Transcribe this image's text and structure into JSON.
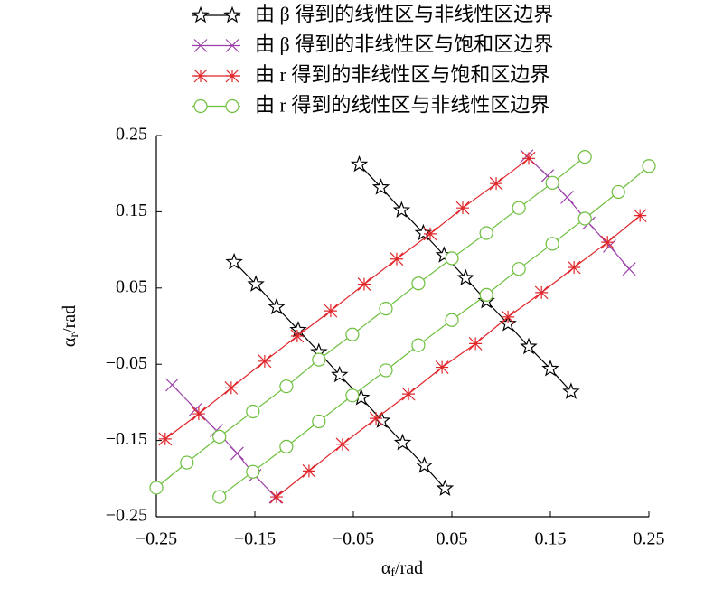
{
  "chart_data": {
    "type": "line",
    "xlabel": {
      "symbol": "α",
      "sub": "f",
      "unit": "/rad"
    },
    "ylabel": {
      "symbol": "α",
      "sub": "r",
      "unit": "/rad"
    },
    "xlim": [
      -0.25,
      0.25
    ],
    "ylim": [
      -0.25,
      0.25
    ],
    "xticks": [
      {
        "value": -0.25,
        "label": "−0.25"
      },
      {
        "value": -0.15,
        "label": "−0.15"
      },
      {
        "value": -0.05,
        "label": "−0.05"
      },
      0.05,
      0.15,
      0.25
    ],
    "yticks": [
      {
        "value": -0.25,
        "label": "−0.25"
      },
      {
        "value": -0.15,
        "label": "−0.15"
      },
      {
        "value": -0.05,
        "label": "−0.05"
      },
      0.05,
      0.15,
      0.25
    ],
    "series": [
      {
        "name": "由 β 得到的线性区与非线性区边界",
        "color": "#000000",
        "marker": "star",
        "x": [
          -0.171,
          -0.149,
          -0.128,
          -0.106,
          -0.085,
          -0.064,
          -0.042,
          -0.021,
          0.0,
          0.022,
          0.043,
          null,
          -0.044,
          -0.022,
          -0.001,
          0.021,
          0.042,
          0.064,
          0.085,
          0.107,
          0.128,
          0.15,
          0.171
        ],
        "values": [
          0.084,
          0.055,
          0.025,
          -0.005,
          -0.034,
          -0.064,
          -0.094,
          -0.124,
          -0.153,
          -0.183,
          -0.213,
          null,
          0.212,
          0.182,
          0.152,
          0.122,
          0.093,
          0.063,
          0.033,
          0.003,
          -0.027,
          -0.056,
          -0.086
        ]
      },
      {
        "name": "由 β 得到的非线性区与饱和区边界",
        "color": "#9b3fa8",
        "marker": "x",
        "x": [
          -0.234,
          -0.21,
          -0.189,
          -0.168,
          -0.15,
          -0.129,
          null,
          0.126,
          0.147,
          0.167,
          0.189,
          0.21,
          0.23
        ],
        "values": [
          -0.077,
          -0.109,
          -0.137,
          -0.167,
          -0.196,
          -0.224,
          null,
          0.223,
          0.197,
          0.169,
          0.135,
          0.105,
          0.075
        ]
      },
      {
        "name": "由 r 得到的非线性区与饱和区边界",
        "color": "#e0262a",
        "marker": "asterisk",
        "x": [
          -0.241,
          -0.207,
          -0.174,
          -0.14,
          -0.107,
          -0.073,
          -0.039,
          -0.006,
          0.028,
          0.061,
          0.095,
          0.128,
          null,
          -0.128,
          -0.095,
          -0.061,
          -0.027,
          0.006,
          0.04,
          0.074,
          0.107,
          0.141,
          0.174,
          0.208,
          0.241
        ],
        "values": [
          -0.148,
          -0.115,
          -0.081,
          -0.046,
          -0.013,
          0.02,
          0.055,
          0.088,
          0.121,
          0.155,
          0.187,
          0.22,
          null,
          -0.224,
          -0.19,
          -0.155,
          -0.121,
          -0.089,
          -0.054,
          -0.023,
          0.012,
          0.044,
          0.077,
          0.11,
          0.145
        ]
      },
      {
        "name": "由 r 得到的线性区与非线性区边界",
        "color": "#6cbf3c",
        "marker": "circle",
        "x": [
          -0.25,
          -0.219,
          -0.186,
          -0.152,
          -0.118,
          -0.085,
          -0.051,
          -0.017,
          0.016,
          0.05,
          0.085,
          0.118,
          0.152,
          0.185,
          null,
          -0.186,
          -0.152,
          -0.118,
          -0.085,
          -0.051,
          -0.017,
          0.016,
          0.05,
          0.085,
          0.118,
          0.152,
          0.185,
          0.219,
          0.25
        ],
        "values": [
          -0.212,
          -0.179,
          -0.145,
          -0.112,
          -0.079,
          -0.044,
          -0.011,
          0.023,
          0.056,
          0.089,
          0.122,
          0.155,
          0.188,
          0.222,
          null,
          -0.224,
          -0.191,
          -0.158,
          -0.125,
          -0.091,
          -0.058,
          -0.025,
          0.008,
          0.041,
          0.075,
          0.108,
          0.141,
          0.176,
          0.21
        ]
      }
    ]
  }
}
